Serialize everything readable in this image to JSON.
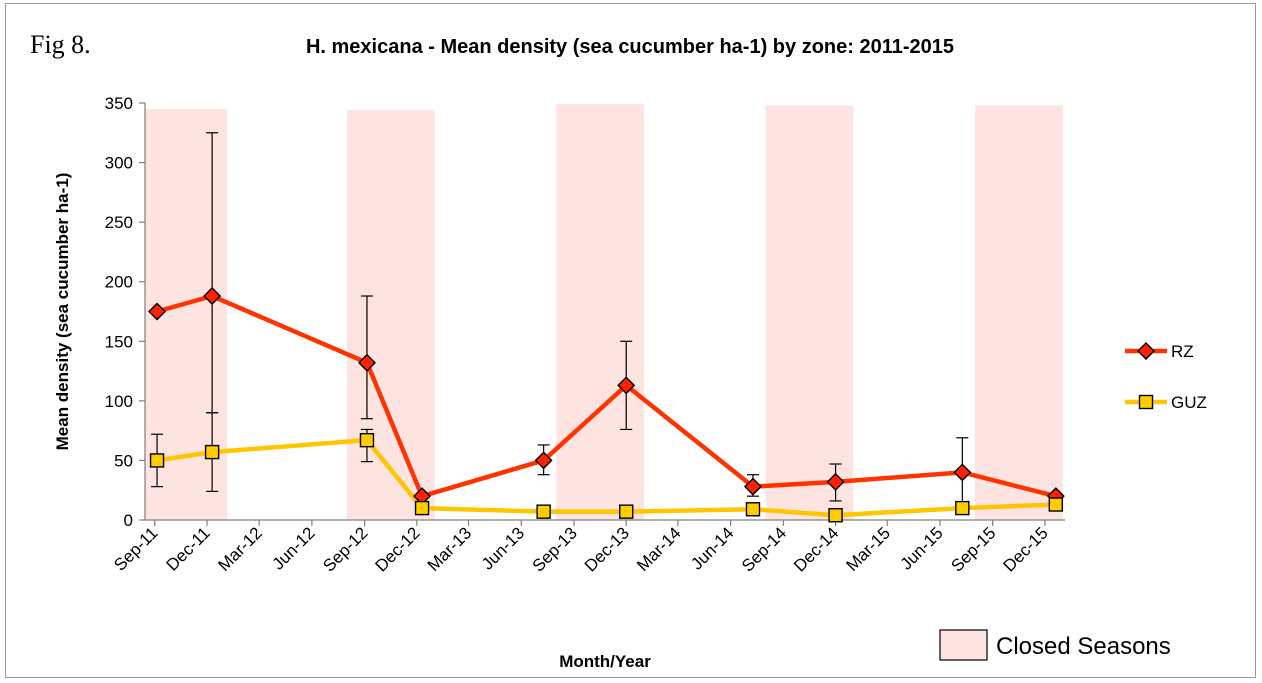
{
  "figure_label": "Fig 8.",
  "chart_data": {
    "type": "line",
    "title": "H. mexicana - Mean density (sea cucumber ha-1) by zone: 2011-2015",
    "xlabel": "Month/Year",
    "ylabel": "Mean density (sea cucumber ha-1)",
    "ylim": [
      0,
      350
    ],
    "yticks": [
      0,
      50,
      100,
      150,
      200,
      250,
      300,
      350
    ],
    "xlim": [
      "2011-08-15",
      "2016-01-05"
    ],
    "xticks": [
      {
        "date": "2011-09-01",
        "label": "Sep-11"
      },
      {
        "date": "2011-12-01",
        "label": "Dec-11"
      },
      {
        "date": "2012-03-01",
        "label": "Mar-12"
      },
      {
        "date": "2012-06-01",
        "label": "Jun-12"
      },
      {
        "date": "2012-09-01",
        "label": "Sep-12"
      },
      {
        "date": "2012-12-01",
        "label": "Dec-12"
      },
      {
        "date": "2013-03-01",
        "label": "Mar-13"
      },
      {
        "date": "2013-06-01",
        "label": "Jun-13"
      },
      {
        "date": "2013-09-01",
        "label": "Sep-13"
      },
      {
        "date": "2013-12-01",
        "label": "Dec-13"
      },
      {
        "date": "2014-03-01",
        "label": "Mar-14"
      },
      {
        "date": "2014-06-01",
        "label": "Jun-14"
      },
      {
        "date": "2014-09-01",
        "label": "Sep-14"
      },
      {
        "date": "2014-12-01",
        "label": "Dec-14"
      },
      {
        "date": "2015-03-01",
        "label": "Mar-15"
      },
      {
        "date": "2015-06-01",
        "label": "Jun-15"
      },
      {
        "date": "2015-09-01",
        "label": "Sep-15"
      },
      {
        "date": "2015-12-01",
        "label": "Dec-15"
      }
    ],
    "closed_seasons": [
      {
        "start": "2011-08-15",
        "end": "2012-01-05",
        "ymax": 345
      },
      {
        "start": "2012-08-01",
        "end": "2013-01-01",
        "ymax": 344
      },
      {
        "start": "2013-08-01",
        "end": "2014-01-01",
        "ymax": 349
      },
      {
        "start": "2014-08-01",
        "end": "2015-01-01",
        "ymax": 348
      },
      {
        "start": "2015-08-01",
        "end": "2016-01-01",
        "ymax": 348
      }
    ],
    "series": [
      {
        "name": "RZ",
        "color": "#ff3300",
        "marker_fill": "#ff2200",
        "marker": "diamond",
        "points": [
          {
            "date": "2011-09-05",
            "y": 175
          },
          {
            "date": "2011-12-10",
            "y": 188,
            "err_low": 90,
            "err_high": 325
          },
          {
            "date": "2012-09-05",
            "y": 132,
            "err_low": 85,
            "err_high": 188
          },
          {
            "date": "2012-12-10",
            "y": 20
          },
          {
            "date": "2013-07-10",
            "y": 50,
            "err_low": 38,
            "err_high": 63
          },
          {
            "date": "2013-12-01",
            "y": 113,
            "err_low": 76,
            "err_high": 150
          },
          {
            "date": "2014-07-10",
            "y": 28,
            "err_low": 20,
            "err_high": 38
          },
          {
            "date": "2014-12-01",
            "y": 32,
            "err_low": 16,
            "err_high": 47
          },
          {
            "date": "2015-07-10",
            "y": 40,
            "err_low": 10,
            "err_high": 69
          },
          {
            "date": "2015-12-20",
            "y": 20
          }
        ]
      },
      {
        "name": "GUZ",
        "color": "#ffc600",
        "marker_fill": "#ffcc00",
        "marker": "square",
        "points": [
          {
            "date": "2011-09-05",
            "y": 50,
            "err_low": 28,
            "err_high": 72
          },
          {
            "date": "2011-12-10",
            "y": 57,
            "err_low": 24,
            "err_high": 90
          },
          {
            "date": "2012-09-05",
            "y": 67,
            "err_low": 49,
            "err_high": 76
          },
          {
            "date": "2012-12-10",
            "y": 10
          },
          {
            "date": "2013-07-10",
            "y": 7
          },
          {
            "date": "2013-12-01",
            "y": 7
          },
          {
            "date": "2014-07-10",
            "y": 9
          },
          {
            "date": "2014-12-01",
            "y": 4
          },
          {
            "date": "2015-07-10",
            "y": 10
          },
          {
            "date": "2015-12-20",
            "y": 13
          }
        ]
      }
    ],
    "legend": {
      "placement": "right",
      "entries": [
        "RZ",
        "GUZ"
      ]
    },
    "closed_legend_label": "Closed Seasons",
    "closed_fill": "#fde4e1",
    "grid": false
  }
}
